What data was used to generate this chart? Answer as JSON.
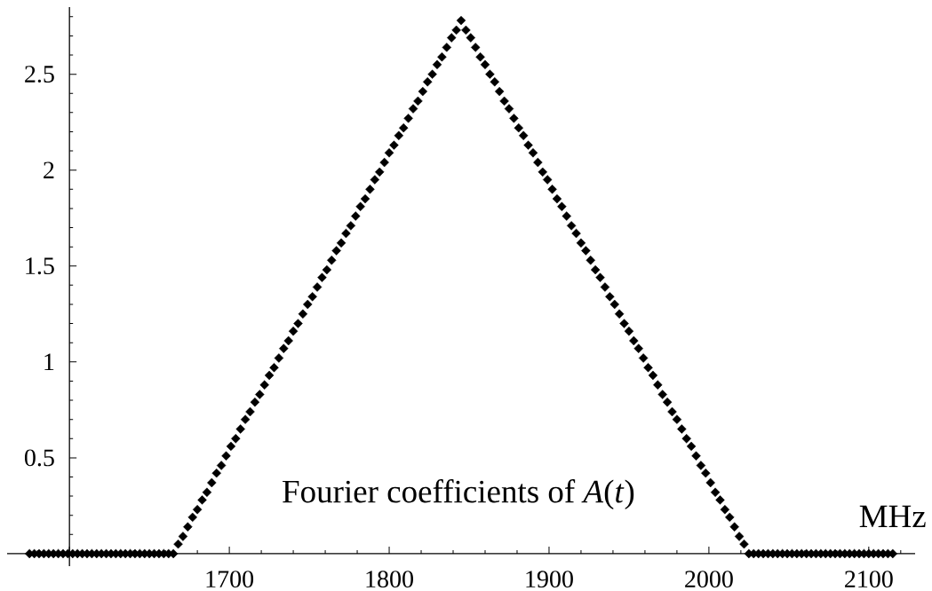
{
  "chart_data": {
    "type": "scatter",
    "color": "#000000",
    "marker": "diamond",
    "xlabel": "MHz",
    "annotations": [
      "Fourier coefficients of *A*(*t*)"
    ],
    "xlim": [
      1561,
      2129
    ],
    "ylim": [
      -0.065,
      2.85
    ],
    "xticks": [
      {
        "value": 1600,
        "label": null
      },
      1700,
      1800,
      1900,
      2000,
      2100
    ],
    "yticks": [
      {
        "value": 0,
        "label": null
      },
      0.5,
      1,
      1.5,
      2,
      2.5
    ],
    "x": [
      1575,
      1578,
      1581,
      1584,
      1587,
      1590,
      1593,
      1596,
      1599,
      1602,
      1605,
      1608,
      1611,
      1614,
      1617,
      1620,
      1623,
      1626,
      1629,
      1632,
      1635,
      1638,
      1641,
      1644,
      1647,
      1650,
      1653,
      1656,
      1659,
      1662,
      1665,
      1668,
      1671,
      1674,
      1677,
      1680,
      1683,
      1686,
      1689,
      1692,
      1695,
      1698,
      1701,
      1704,
      1707,
      1710,
      1713,
      1716,
      1719,
      1722,
      1725,
      1728,
      1731,
      1734,
      1737,
      1740,
      1743,
      1746,
      1749,
      1752,
      1755,
      1758,
      1761,
      1764,
      1767,
      1770,
      1773,
      1776,
      1779,
      1782,
      1785,
      1788,
      1791,
      1794,
      1797,
      1800,
      1803,
      1806,
      1809,
      1812,
      1815,
      1818,
      1821,
      1824,
      1827,
      1830,
      1833,
      1836,
      1839,
      1842,
      1845,
      1848,
      1851,
      1854,
      1857,
      1860,
      1863,
      1866,
      1869,
      1872,
      1875,
      1878,
      1881,
      1884,
      1887,
      1890,
      1893,
      1896,
      1899,
      1902,
      1905,
      1908,
      1911,
      1914,
      1917,
      1920,
      1923,
      1926,
      1929,
      1932,
      1935,
      1938,
      1941,
      1944,
      1947,
      1950,
      1953,
      1956,
      1959,
      1962,
      1965,
      1968,
      1971,
      1974,
      1977,
      1980,
      1983,
      1986,
      1989,
      1992,
      1995,
      1998,
      2001,
      2004,
      2007,
      2010,
      2013,
      2016,
      2019,
      2022,
      2025,
      2028,
      2031,
      2034,
      2037,
      2040,
      2043,
      2046,
      2049,
      2052,
      2055,
      2058,
      2061,
      2064,
      2067,
      2070,
      2073,
      2076,
      2079,
      2082,
      2085,
      2088,
      2091,
      2094,
      2097,
      2100,
      2103,
      2106,
      2109,
      2112,
      2115
    ],
    "values": [
      0,
      0,
      0,
      0,
      0,
      0,
      0,
      0,
      0,
      0,
      0,
      0,
      0,
      0,
      0,
      0,
      0,
      0,
      0,
      0,
      0,
      0,
      0,
      0,
      0,
      0,
      0,
      0,
      0,
      0,
      0,
      0.05,
      0.09,
      0.14,
      0.19,
      0.23,
      0.28,
      0.32,
      0.37,
      0.42,
      0.46,
      0.51,
      0.56,
      0.6,
      0.65,
      0.7,
      0.74,
      0.79,
      0.83,
      0.88,
      0.93,
      0.97,
      1.02,
      1.07,
      1.11,
      1.16,
      1.2,
      1.25,
      1.3,
      1.34,
      1.39,
      1.44,
      1.48,
      1.53,
      1.58,
      1.62,
      1.67,
      1.71,
      1.76,
      1.81,
      1.85,
      1.9,
      1.95,
      1.99,
      2.04,
      2.09,
      2.13,
      2.18,
      2.22,
      2.27,
      2.32,
      2.36,
      2.41,
      2.46,
      2.5,
      2.55,
      2.59,
      2.64,
      2.69,
      2.73,
      2.78,
      2.73,
      2.69,
      2.64,
      2.59,
      2.55,
      2.5,
      2.46,
      2.41,
      2.36,
      2.32,
      2.27,
      2.22,
      2.18,
      2.13,
      2.09,
      2.04,
      1.99,
      1.95,
      1.9,
      1.85,
      1.81,
      1.76,
      1.71,
      1.67,
      1.62,
      1.58,
      1.53,
      1.48,
      1.44,
      1.39,
      1.34,
      1.3,
      1.25,
      1.2,
      1.16,
      1.11,
      1.07,
      1.02,
      0.97,
      0.93,
      0.88,
      0.83,
      0.79,
      0.74,
      0.7,
      0.65,
      0.6,
      0.56,
      0.51,
      0.46,
      0.42,
      0.37,
      0.32,
      0.28,
      0.23,
      0.19,
      0.14,
      0.09,
      0.05,
      0,
      0,
      0,
      0,
      0,
      0,
      0,
      0,
      0,
      0,
      0,
      0,
      0,
      0,
      0,
      0,
      0,
      0,
      0,
      0,
      0,
      0,
      0,
      0,
      0,
      0,
      0,
      0,
      0,
      0,
      0
    ]
  }
}
